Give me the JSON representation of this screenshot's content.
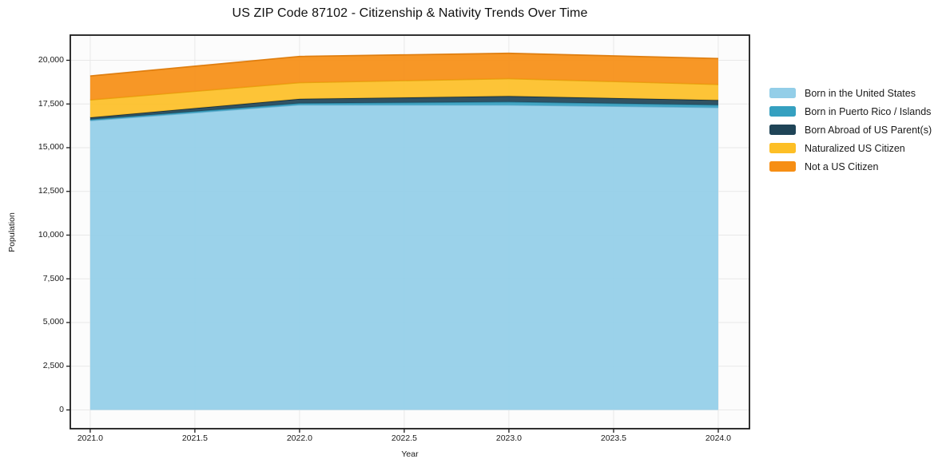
{
  "title": "US ZIP Code 87102 - Citizenship & Nativity Trends Over Time",
  "chart_data": {
    "type": "area",
    "stacked": true,
    "title": "US ZIP Code 87102 - Citizenship & Nativity Trends Over Time",
    "xlabel": "Year",
    "ylabel": "Population",
    "x": [
      2021,
      2022,
      2023,
      2024
    ],
    "series": [
      {
        "name": "Born in the United States",
        "color": "#93CEE8",
        "edge_color": "#6CB0D0",
        "values": [
          16550,
          17450,
          17440,
          17300
        ]
      },
      {
        "name": "Born in Puerto Rico / Islands",
        "color": "#35A0C0",
        "edge_color": "#2B86A3",
        "values": [
          60,
          90,
          180,
          140
        ]
      },
      {
        "name": "Born Abroad of US Parent(s)",
        "color": "#1F4457",
        "edge_color": "#132C3A",
        "values": [
          120,
          250,
          330,
          280
        ]
      },
      {
        "name": "Naturalized US Citizen",
        "color": "#FDBF26",
        "edge_color": "#E3A70E",
        "values": [
          1000,
          930,
          1000,
          900
        ]
      },
      {
        "name": "Not a US Citizen",
        "color": "#F68E14",
        "edge_color": "#DD7A0A",
        "values": [
          1370,
          1500,
          1450,
          1480
        ]
      }
    ],
    "x_tick_values": [
      2021.0,
      2021.5,
      2022.0,
      2022.5,
      2023.0,
      2023.5,
      2024.0
    ],
    "x_tick_labels": [
      "2021.0",
      "2021.5",
      "2022.0",
      "2022.5",
      "2023.0",
      "2023.5",
      "2024.0"
    ],
    "y_tick_values": [
      0,
      2500,
      5000,
      7500,
      10000,
      12500,
      15000,
      17500,
      20000
    ],
    "y_tick_labels": [
      "0",
      "2,500",
      "5,000",
      "7,500",
      "10,000",
      "12,500",
      "15,000",
      "17,500",
      "20,000"
    ],
    "xlim": [
      2020.905,
      2024.149
    ],
    "ylim": [
      -1073,
      21438
    ],
    "grid": true,
    "grid_color": "#e8e8e8",
    "plot_bg": "#fcfcfc",
    "frame_color": "#1a1a1a",
    "fill_opacity": 0.92,
    "legend_position": "right"
  }
}
